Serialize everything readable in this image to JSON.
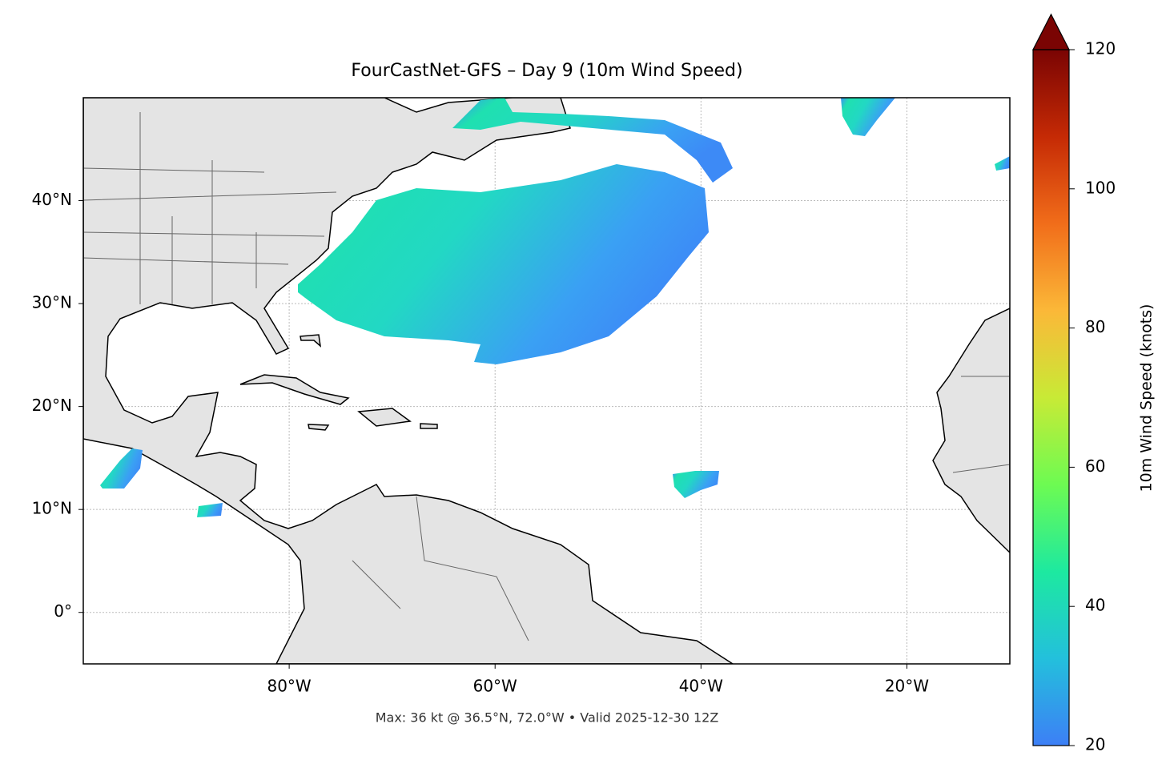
{
  "chart_data": {
    "type": "map",
    "title": "FourCastNet-GFS – Day 9 (10m Wind Speed)",
    "footnote": "Max: 36 kt @ 36.5°N, 72.0°W • Valid 2025-12-30 12Z",
    "xlim": [
      -100,
      -10
    ],
    "ylim": [
      -5,
      50
    ],
    "xticks": [
      {
        "value": -80,
        "label": "80°W"
      },
      {
        "value": -60,
        "label": "60°W"
      },
      {
        "value": -40,
        "label": "40°W"
      },
      {
        "value": -20,
        "label": "20°W"
      }
    ],
    "yticks": [
      {
        "value": 0,
        "label": "0°"
      },
      {
        "value": 10,
        "label": "10°N"
      },
      {
        "value": 20,
        "label": "20°N"
      },
      {
        "value": 30,
        "label": "30°N"
      },
      {
        "value": 40,
        "label": "40°N"
      }
    ],
    "grid": true,
    "colorbar": {
      "label": "10m Wind Speed (knots)",
      "lim": [
        20,
        120
      ],
      "ticks": [
        20,
        40,
        60,
        80,
        100,
        120
      ],
      "colors": [
        "#3d7ff6",
        "#23c0dc",
        "#1de9a0",
        "#6dfb52",
        "#c8ea36",
        "#fbb838",
        "#f16d1a",
        "#c52a05",
        "#7a0403"
      ],
      "extend": "max"
    }
  }
}
